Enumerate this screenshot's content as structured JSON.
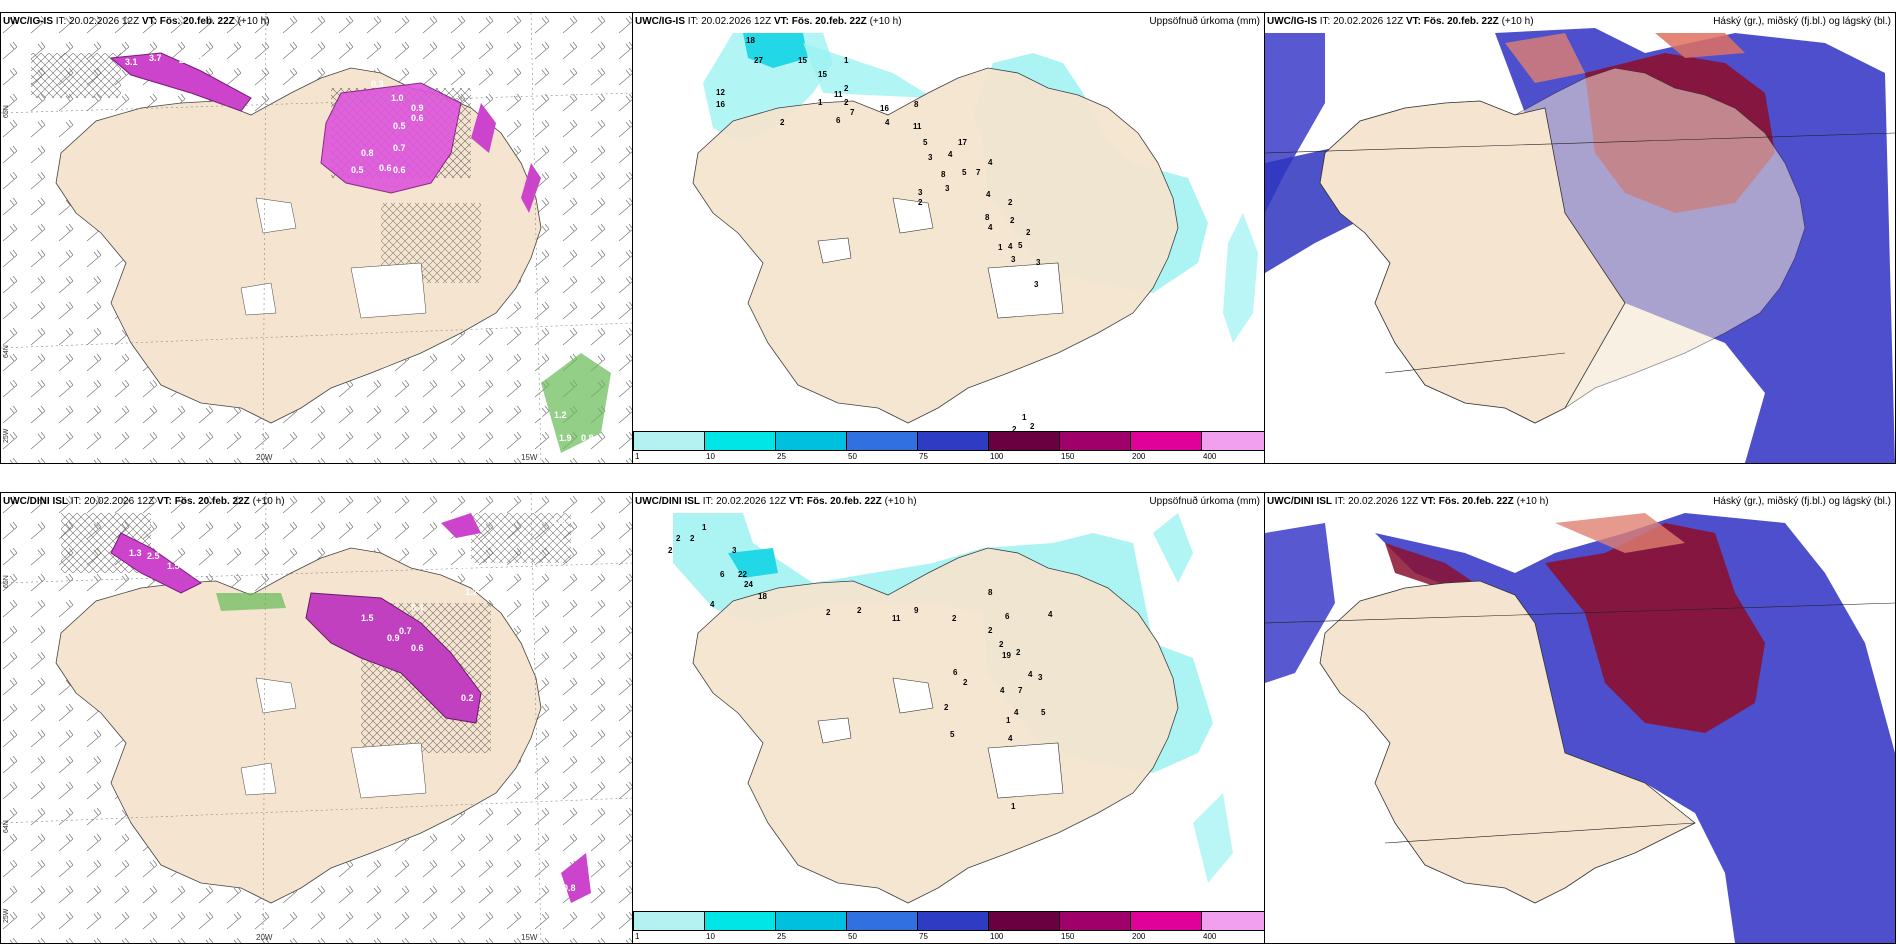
{
  "top": {
    "left": {
      "model": "UWC/IG-IS",
      "it_label": "IT:",
      "it": "20.02.2026 12Z",
      "vt_label": "VT:",
      "vt": "Fös. 20.feb. 22Z",
      "lead": "(+10 h)"
    },
    "mid": {
      "model": "UWC/IG-IS",
      "it_label": "IT:",
      "it": "20.02.2026 12Z",
      "vt_label": "VT:",
      "vt": "Fös. 20.feb. 22Z",
      "lead": "(+10 h)",
      "title": "Uppsöfnuð úrkoma (mm)"
    },
    "right": {
      "model": "UWC/IG-IS",
      "it_label": "IT:",
      "it": "20.02.2026 12Z",
      "vt_label": "VT:",
      "vt": "Fös. 20.feb. 22Z",
      "lead": "(+10 h)",
      "title": "Háský (gr.), miðský (fj.bl.) og lágský (bl.)"
    }
  },
  "bottom": {
    "left": {
      "model": "UWC/DINI ISL",
      "it_label": "IT:",
      "it": "20.02.2026 12Z",
      "vt_label": "VT:",
      "vt": "Fös. 20.feb. 22Z",
      "lead": "(+10 h)"
    },
    "mid": {
      "model": "UWC/DINI ISL",
      "it_label": "IT:",
      "it": "20.02.2026 12Z",
      "vt_label": "VT:",
      "vt": "Fös. 20.feb. 22Z",
      "lead": "(+10 h)",
      "title": "Uppsöfnuð úrkoma (mm)"
    },
    "right": {
      "model": "UWC/DINI ISL",
      "it_label": "IT:",
      "it": "20.02.2026 12Z",
      "vt_label": "VT:",
      "vt": "Fös. 20.feb. 22Z",
      "lead": "(+10 h)",
      "title": "Háský (gr.), miðský (fj.bl.) og lágský (bl.)"
    }
  },
  "axes": {
    "lat65": "65N",
    "lat64": "64N",
    "lon20": "20W",
    "lon15": "15W",
    "lon25": "25W"
  },
  "colorbar": {
    "labels": [
      "1",
      "10",
      "25",
      "50",
      "75",
      "100",
      "150",
      "200",
      "400"
    ],
    "colors": [
      "#b4f2f2",
      "#00e6e6",
      "#00c0e0",
      "#3070e0",
      "#2e3cc4",
      "#6a0040",
      "#a0006a",
      "#e0009a",
      "#f0a0ee"
    ]
  },
  "top_precip_labels": [
    "18",
    "27",
    "15",
    "15",
    "11",
    "12",
    "16",
    "2",
    "1",
    "2",
    "2",
    "1",
    "7",
    "6",
    "16",
    "4",
    "8",
    "11",
    "5",
    "3",
    "17",
    "4",
    "8",
    "3",
    "5",
    "7",
    "4",
    "4",
    "3",
    "2",
    "8",
    "4",
    "1",
    "2",
    "2",
    "4",
    "5",
    "3",
    "2",
    "3",
    "3",
    "1",
    "2",
    "2"
  ],
  "bottom_precip_labels": [
    "2",
    "2",
    "2",
    "1",
    "3",
    "6",
    "22",
    "24",
    "18",
    "4",
    "2",
    "2",
    "11",
    "9",
    "2",
    "8",
    "6",
    "2",
    "2",
    "4",
    "19",
    "4",
    "6",
    "2",
    "4",
    "7",
    "3",
    "2",
    "4",
    "5",
    "2",
    "5",
    "1",
    "1",
    "4"
  ],
  "top_graupel_labels": [
    "3.1",
    "3.7",
    "2.1",
    "1.6",
    "0.7",
    "0.3",
    "1.0",
    "0.9",
    "0.6",
    "0.5",
    "0.7",
    "0.8",
    "0.6",
    "0.5",
    "0.6",
    "0.8",
    "0.7",
    "1.3",
    "1.2",
    "1.9",
    "0.8"
  ],
  "bottom_graupel_labels": [
    "1.3",
    "2.5",
    "1.5",
    "1.2",
    "0.4",
    "0.7",
    "1.5",
    "0.9",
    "0.6",
    "0.2",
    "3.1",
    "1.2",
    "1.8",
    "0.5",
    "0.7",
    "0.8"
  ]
}
